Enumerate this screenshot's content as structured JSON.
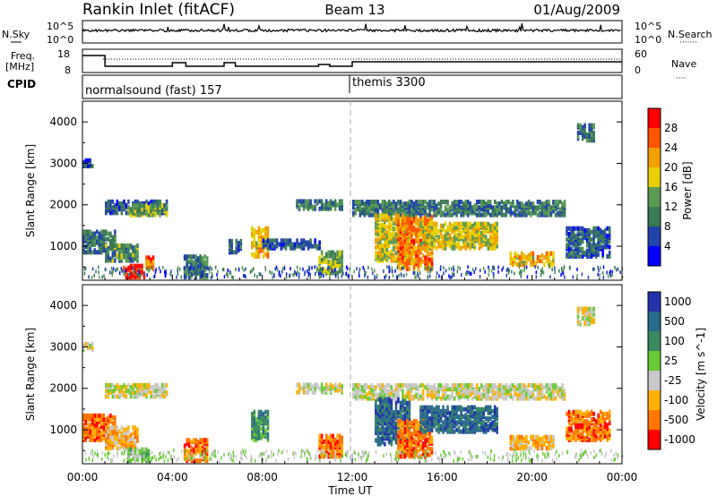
{
  "header": {
    "station": "Rankin Inlet (fitACF)",
    "beam": "Beam 13",
    "date": "01/Aug/2009"
  },
  "noise_panel": {
    "left_label": "N.Sky",
    "left_ticks": [
      "10^5",
      "10^0"
    ],
    "right_label": "N.Search",
    "right_ticks": [
      "10^5",
      "10^0"
    ]
  },
  "freq_panel": {
    "left_label_top": "Freq.",
    "left_label_bottom": "[MHz]",
    "left_ticks": [
      "18",
      "8"
    ],
    "right_label": "Nave",
    "right_ticks": [
      "60",
      "0"
    ],
    "cpid_label": "CPID"
  },
  "cpid_panel": {
    "segments": [
      "normalsound (fast) 157",
      "themis 3300"
    ]
  },
  "colors": {
    "power": [
      "#0000ff",
      "#2244aa",
      "#3a7a55",
      "#5a9a55",
      "#e8d000",
      "#f0a000",
      "#ff5500",
      "#ff0000"
    ],
    "velocity": [
      "#2233aa",
      "#2a6a8a",
      "#3a8a60",
      "#66cc33",
      "#c8c8c8",
      "#ffb000",
      "#ff7700",
      "#ff0000"
    ]
  },
  "chart_data": [
    {
      "type": "heatmap",
      "name": "power",
      "ylabel": "Slant Range [km]",
      "xlabel": "Time UT",
      "x_ticks": [
        "00:00",
        "04:00",
        "08:00",
        "12:00",
        "16:00",
        "20:00",
        "00:00"
      ],
      "xlim_hours": [
        0,
        24
      ],
      "y_ticks": [
        1000,
        2000,
        3000,
        4000
      ],
      "ylim": [
        180,
        4500
      ],
      "colorbar": {
        "label": "Power [dB]",
        "ticks": [
          4,
          8,
          12,
          16,
          20,
          24,
          28
        ],
        "range": [
          0,
          32
        ]
      },
      "blobs": [
        {
          "t0": 0.0,
          "t1": 0.5,
          "r0": 2880,
          "r1": 3020,
          "v": 6
        },
        {
          "t0": 0.0,
          "t1": 1.5,
          "r0": 800,
          "r1": 1300,
          "v": 9
        },
        {
          "t0": 1.0,
          "t1": 2.5,
          "r0": 600,
          "r1": 1000,
          "v": 12
        },
        {
          "t0": 1.8,
          "t1": 2.8,
          "r0": 200,
          "r1": 500,
          "v": 29
        },
        {
          "t0": 1.0,
          "t1": 3.8,
          "r0": 1750,
          "r1": 2050,
          "v": 8
        },
        {
          "t0": 2.0,
          "t1": 3.8,
          "r0": 1700,
          "r1": 1950,
          "v": 14
        },
        {
          "t0": 2.8,
          "t1": 3.2,
          "r0": 400,
          "r1": 700,
          "v": 24
        },
        {
          "t0": 4.5,
          "t1": 5.5,
          "r0": 200,
          "r1": 700,
          "v": 10
        },
        {
          "t0": 6.5,
          "t1": 7.0,
          "r0": 800,
          "r1": 1100,
          "v": 8
        },
        {
          "t0": 7.5,
          "t1": 8.2,
          "r0": 700,
          "r1": 1400,
          "v": 20
        },
        {
          "t0": 8.0,
          "t1": 10.5,
          "r0": 900,
          "r1": 1100,
          "v": 7
        },
        {
          "t0": 9.5,
          "t1": 11.5,
          "r0": 1850,
          "r1": 2050,
          "v": 11
        },
        {
          "t0": 10.5,
          "t1": 11.5,
          "r0": 300,
          "r1": 800,
          "v": 14
        },
        {
          "t0": 12.0,
          "t1": 14.5,
          "r0": 1700,
          "r1": 2050,
          "v": 10
        },
        {
          "t0": 13.0,
          "t1": 14.5,
          "r0": 600,
          "r1": 1700,
          "v": 18
        },
        {
          "t0": 14.0,
          "t1": 15.5,
          "r0": 400,
          "r1": 1700,
          "v": 24
        },
        {
          "t0": 15.0,
          "t1": 18.5,
          "r0": 900,
          "r1": 1500,
          "v": 18
        },
        {
          "t0": 14.5,
          "t1": 21.5,
          "r0": 1700,
          "r1": 2050,
          "v": 10
        },
        {
          "t0": 19.0,
          "t1": 21.0,
          "r0": 500,
          "r1": 800,
          "v": 20
        },
        {
          "t0": 21.5,
          "t1": 23.5,
          "r0": 700,
          "r1": 1400,
          "v": 8
        },
        {
          "t0": 22.0,
          "t1": 22.8,
          "r0": 3500,
          "r1": 3900,
          "v": 10
        }
      ]
    },
    {
      "type": "heatmap",
      "name": "velocity",
      "ylabel": "Slant Range [km]",
      "xlabel": "Time UT",
      "x_ticks": [
        "00:00",
        "04:00",
        "08:00",
        "12:00",
        "16:00",
        "20:00",
        "00:00"
      ],
      "xlim_hours": [
        0,
        24
      ],
      "y_ticks": [
        1000,
        2000,
        3000,
        4000
      ],
      "ylim": [
        180,
        4500
      ],
      "colorbar": {
        "label": "Velocity [m s^-1]",
        "ticks": [
          1000,
          500,
          100,
          25,
          -25,
          -100,
          -500,
          -1000
        ]
      },
      "blobs": [
        {
          "t0": 0.0,
          "t1": 0.5,
          "r0": 2880,
          "r1": 3020,
          "v": 4
        },
        {
          "t0": 0.0,
          "t1": 1.5,
          "r0": 700,
          "r1": 1300,
          "v": 6
        },
        {
          "t0": 1.0,
          "t1": 2.5,
          "r0": 500,
          "r1": 1000,
          "v": 5
        },
        {
          "t0": 2.0,
          "t1": 3.0,
          "r0": 200,
          "r1": 500,
          "v": 3
        },
        {
          "t0": 1.0,
          "t1": 3.8,
          "r0": 1750,
          "r1": 2050,
          "v": 4
        },
        {
          "t0": 4.5,
          "t1": 5.5,
          "r0": 200,
          "r1": 700,
          "v": 6
        },
        {
          "t0": 7.5,
          "t1": 8.2,
          "r0": 700,
          "r1": 1400,
          "v": 2
        },
        {
          "t0": 9.5,
          "t1": 11.5,
          "r0": 1850,
          "r1": 2050,
          "v": 4
        },
        {
          "t0": 10.5,
          "t1": 11.5,
          "r0": 300,
          "r1": 800,
          "v": 6
        },
        {
          "t0": 12.0,
          "t1": 14.5,
          "r0": 1700,
          "r1": 2050,
          "v": 4
        },
        {
          "t0": 13.0,
          "t1": 14.5,
          "r0": 600,
          "r1": 1700,
          "v": 1
        },
        {
          "t0": 14.0,
          "t1": 15.5,
          "r0": 300,
          "r1": 1200,
          "v": 6
        },
        {
          "t0": 15.0,
          "t1": 18.5,
          "r0": 900,
          "r1": 1500,
          "v": 1
        },
        {
          "t0": 14.5,
          "t1": 21.5,
          "r0": 1700,
          "r1": 2050,
          "v": 4
        },
        {
          "t0": 19.0,
          "t1": 21.0,
          "r0": 500,
          "r1": 800,
          "v": 5
        },
        {
          "t0": 21.5,
          "t1": 23.5,
          "r0": 700,
          "r1": 1400,
          "v": 6
        },
        {
          "t0": 22.0,
          "t1": 22.8,
          "r0": 3500,
          "r1": 3900,
          "v": 4
        }
      ]
    }
  ]
}
